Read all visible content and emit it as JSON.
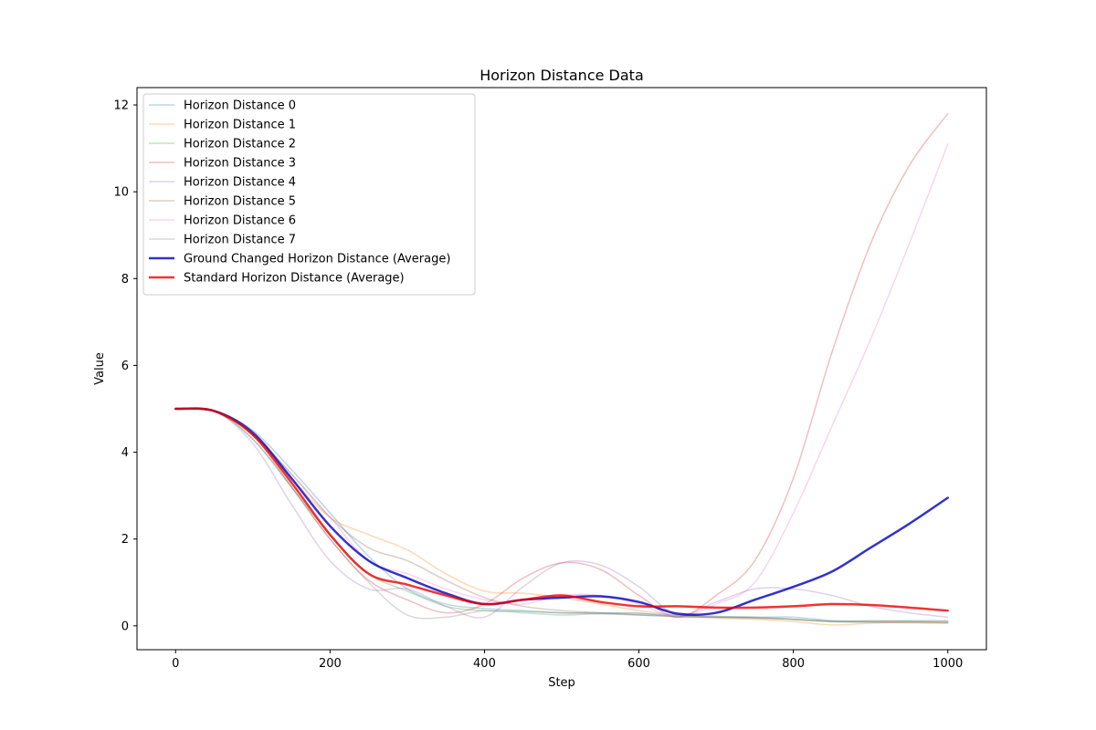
{
  "chart_data": {
    "type": "line",
    "title": "Horizon Distance Data",
    "xlabel": "Step",
    "ylabel": "Value",
    "xlim": [
      -50,
      1050
    ],
    "ylim": [
      -0.55,
      12.4
    ],
    "xticks": [
      0,
      200,
      400,
      600,
      800,
      1000
    ],
    "yticks": [
      0,
      2,
      4,
      6,
      8,
      10,
      12
    ],
    "grid": false,
    "legend_position": "top-left",
    "x": [
      0,
      50,
      100,
      150,
      200,
      250,
      300,
      350,
      400,
      450,
      500,
      550,
      600,
      650,
      700,
      750,
      800,
      850,
      900,
      950,
      1000
    ],
    "series": [
      {
        "name": "Horizon Distance 0",
        "color": "#1f77b4",
        "opacity": 0.3,
        "width": 1.5,
        "values": [
          5.0,
          4.95,
          4.5,
          3.6,
          2.6,
          1.6,
          0.85,
          0.5,
          0.4,
          0.35,
          0.3,
          0.3,
          0.28,
          0.25,
          0.22,
          0.2,
          0.2,
          0.12,
          0.1,
          0.1,
          0.08
        ]
      },
      {
        "name": "Horizon Distance 1",
        "color": "#ff7f0e",
        "opacity": 0.3,
        "width": 1.5,
        "values": [
          5.0,
          4.95,
          4.4,
          3.4,
          2.5,
          2.1,
          1.75,
          1.2,
          0.8,
          0.75,
          0.65,
          0.5,
          0.35,
          0.25,
          0.18,
          0.15,
          0.1,
          0.02,
          0.06,
          0.08,
          0.08
        ]
      },
      {
        "name": "Horizon Distance 2",
        "color": "#2ca02c",
        "opacity": 0.3,
        "width": 1.5,
        "values": [
          5.0,
          4.95,
          4.3,
          3.2,
          2.1,
          1.2,
          0.8,
          0.45,
          0.35,
          0.33,
          0.3,
          0.28,
          0.25,
          0.22,
          0.2,
          0.18,
          0.15,
          0.1,
          0.1,
          0.1,
          0.1
        ]
      },
      {
        "name": "Horizon Distance 3",
        "color": "#d62728",
        "opacity": 0.3,
        "width": 1.5,
        "values": [
          5.0,
          4.95,
          4.4,
          3.2,
          2.0,
          1.05,
          0.6,
          0.3,
          0.5,
          1.1,
          1.45,
          1.3,
          0.7,
          0.2,
          0.7,
          1.5,
          3.4,
          6.3,
          8.8,
          10.6,
          11.8
        ]
      },
      {
        "name": "Horizon Distance 4",
        "color": "#9467bd",
        "opacity": 0.3,
        "width": 1.5,
        "values": [
          5.0,
          4.95,
          4.2,
          2.8,
          1.5,
          0.85,
          0.85,
          0.45,
          0.2,
          0.9,
          1.45,
          1.4,
          0.9,
          0.25,
          0.55,
          0.85,
          0.85,
          0.7,
          0.45,
          0.3,
          0.2
        ]
      },
      {
        "name": "Horizon Distance 5",
        "color": "#8c564b",
        "opacity": 0.3,
        "width": 1.5,
        "values": [
          5.0,
          4.95,
          4.4,
          3.5,
          2.5,
          1.8,
          1.5,
          1.05,
          0.65,
          0.45,
          0.35,
          0.3,
          0.25,
          0.22,
          0.2,
          0.18,
          0.15,
          0.1,
          0.08,
          0.07,
          0.06
        ]
      },
      {
        "name": "Horizon Distance 6",
        "color": "#e377c2",
        "opacity": 0.3,
        "width": 1.5,
        "values": [
          5.0,
          4.95,
          4.4,
          3.5,
          2.5,
          1.5,
          1.2,
          0.85,
          0.6,
          0.5,
          0.7,
          0.7,
          0.5,
          0.2,
          0.5,
          1.0,
          2.6,
          4.6,
          6.6,
          8.8,
          11.1
        ]
      },
      {
        "name": "Horizon Distance 7",
        "color": "#7f7f7f",
        "opacity": 0.3,
        "width": 1.5,
        "values": [
          5.0,
          4.95,
          4.3,
          3.2,
          2.0,
          1.0,
          0.25,
          0.2,
          0.35,
          0.3,
          0.25,
          0.28,
          0.3,
          0.2,
          0.2,
          0.2,
          0.15,
          0.1,
          0.12,
          0.12,
          0.12
        ]
      },
      {
        "name": "Ground Changed Horizon Distance (Average)",
        "color": "#0000bb",
        "opacity": 0.8,
        "width": 2.5,
        "values": [
          5.0,
          4.95,
          4.45,
          3.4,
          2.3,
          1.5,
          1.1,
          0.75,
          0.5,
          0.6,
          0.65,
          0.68,
          0.55,
          0.28,
          0.3,
          0.6,
          0.9,
          1.25,
          1.8,
          2.35,
          2.95
        ]
      },
      {
        "name": "Standard Horizon Distance (Average)",
        "color": "#ee0000",
        "opacity": 0.8,
        "width": 2.5,
        "values": [
          5.0,
          4.95,
          4.4,
          3.3,
          2.1,
          1.2,
          0.95,
          0.7,
          0.5,
          0.6,
          0.7,
          0.55,
          0.45,
          0.45,
          0.42,
          0.42,
          0.45,
          0.5,
          0.48,
          0.42,
          0.35
        ]
      }
    ]
  }
}
